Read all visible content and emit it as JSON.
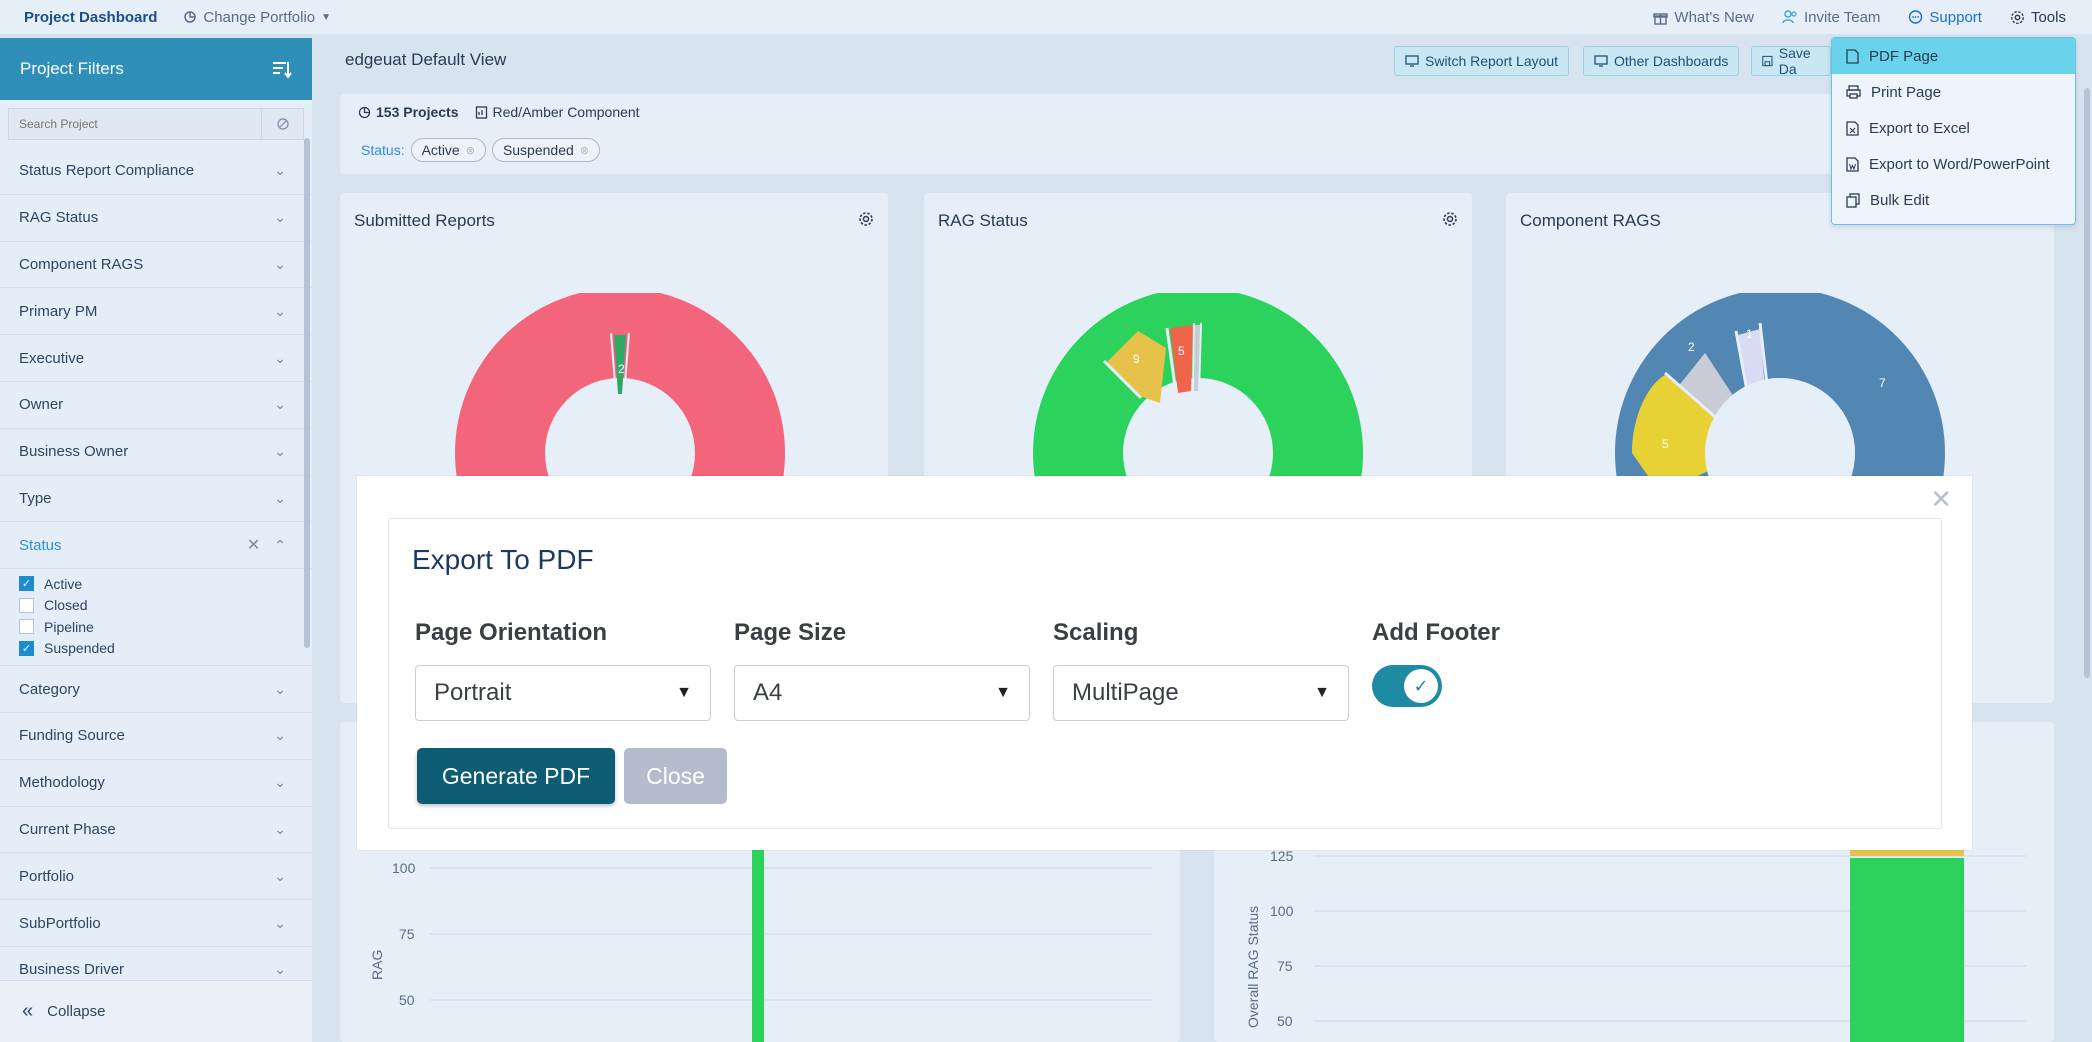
{
  "topbar": {
    "brand": "Project Dashboard",
    "change_portfolio": "Change Portfolio",
    "whats_new": "What's New",
    "invite_team": "Invite Team",
    "support": "Support",
    "tools": "Tools"
  },
  "sidebar": {
    "title": "Project Filters",
    "search_placeholder": "Search Project",
    "filters_top": [
      "Status Report Compliance",
      "RAG Status",
      "Component RAGS",
      "Primary PM",
      "Executive",
      "Owner",
      "Business Owner",
      "Type"
    ],
    "status_label": "Status",
    "status_options": [
      {
        "label": "Active",
        "checked": true
      },
      {
        "label": "Closed",
        "checked": false
      },
      {
        "label": "Pipeline",
        "checked": false
      },
      {
        "label": "Suspended",
        "checked": true
      }
    ],
    "filters_bottom": [
      "Category",
      "Funding Source",
      "Methodology",
      "Current Phase",
      "Portfolio",
      "SubPortfolio",
      "Business Driver"
    ],
    "collapse_label": "Collapse"
  },
  "main": {
    "view_title": "edgeuat Default View",
    "toolbar": {
      "switch_layout": "Switch Report Layout",
      "other_dashboards": "Other Dashboards",
      "save": "Save Da"
    },
    "summary": {
      "projects": "153 Projects",
      "component": "Red/Amber Component",
      "status_label": "Status:",
      "chips": [
        "Active",
        "Suspended"
      ]
    }
  },
  "tools_menu": {
    "items": [
      "PDF Page",
      "Print Page",
      "Export to Excel",
      "Export to Word/PowerPoint",
      "Bulk Edit"
    ],
    "active_index": 0
  },
  "cards": {
    "submitted_reports": {
      "title": "Submitted Reports",
      "label": "2"
    },
    "rag_status": {
      "title": "RAG Status",
      "labels": [
        "9",
        "5"
      ]
    },
    "component_rags": {
      "title": "Component RAGS",
      "labels": [
        "2",
        "1",
        "7",
        "5"
      ]
    }
  },
  "bottom_left_chart": {
    "ylabel": "RAG",
    "ticks": [
      "100",
      "75",
      "50"
    ]
  },
  "bottom_right_chart": {
    "ylabel": "Overall RAG Status",
    "ticks": [
      "125",
      "100",
      "75",
      "50"
    ]
  },
  "modal": {
    "title": "Export To PDF",
    "orientation_label": "Page Orientation",
    "orientation_value": "Portrait",
    "size_label": "Page Size",
    "size_value": "A4",
    "scaling_label": "Scaling",
    "scaling_value": "MultiPage",
    "footer_label": "Add Footer",
    "footer_on": true,
    "generate_label": "Generate PDF",
    "close_label": "Close"
  },
  "colors": {
    "accent": "#2f8fb8",
    "primary_button": "#0d5c73",
    "red": "#f2657b",
    "green": "#2bd35c",
    "amber": "#e6c24a",
    "blue": "#5286b3"
  }
}
